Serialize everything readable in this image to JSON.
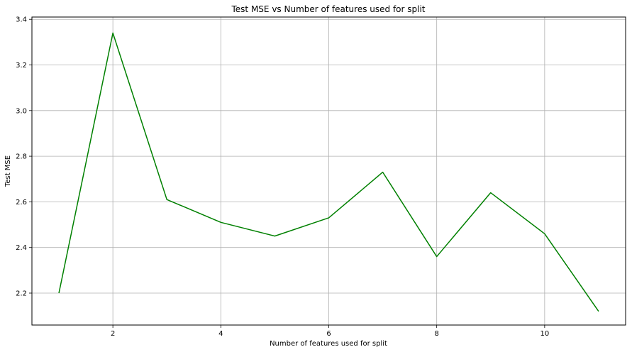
{
  "chart_data": {
    "type": "line",
    "title": "Test MSE vs Number of features used for split",
    "xlabel": "Number of features used for split",
    "ylabel": "Test MSE",
    "xlim": [
      0.5,
      11.5
    ],
    "ylim": [
      2.06,
      3.41
    ],
    "xticks": [
      2,
      4,
      6,
      8,
      10
    ],
    "xtick_labels": [
      "2",
      "4",
      "6",
      "8",
      "10"
    ],
    "yticks": [
      2.2,
      2.4,
      2.6,
      2.8,
      3.0,
      3.2,
      3.4
    ],
    "ytick_labels": [
      "2.2",
      "2.4",
      "2.6",
      "2.8",
      "3.0",
      "3.2",
      "3.4"
    ],
    "grid": true,
    "series": [
      {
        "color": "#008000",
        "x": [
          1,
          2,
          3,
          4,
          5,
          6,
          7,
          8,
          9,
          10,
          11
        ],
        "y": [
          2.2,
          3.34,
          2.61,
          2.51,
          2.45,
          2.53,
          2.73,
          2.36,
          2.64,
          2.46,
          2.12
        ]
      }
    ]
  }
}
